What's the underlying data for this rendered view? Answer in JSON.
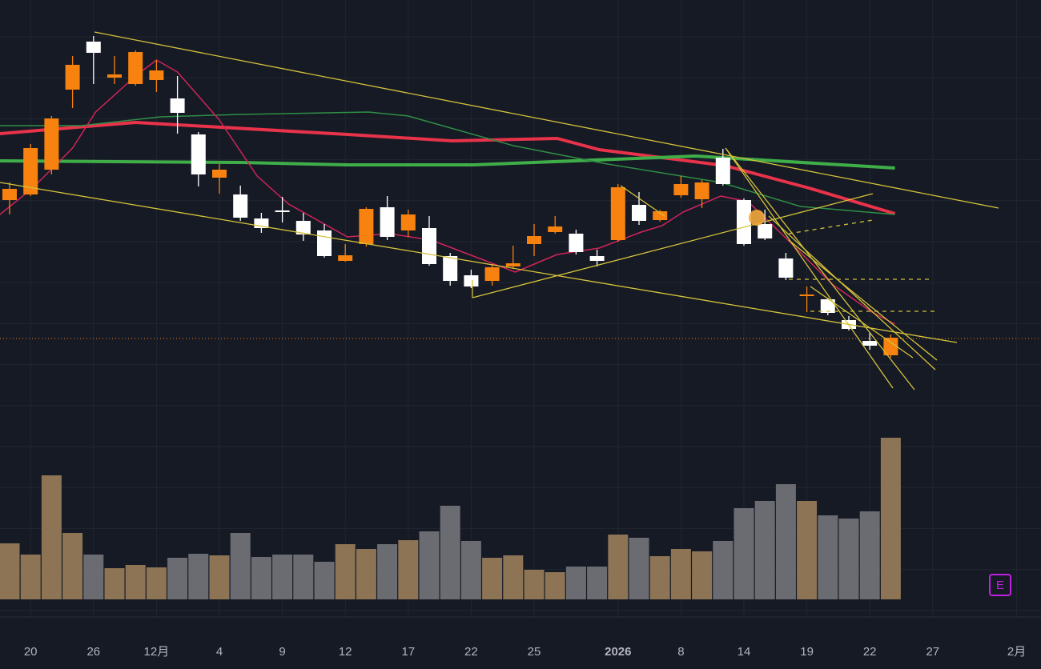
{
  "chart_data": {
    "type": "candlestick",
    "categories": [
      null,
      "20",
      null,
      null,
      "26",
      null,
      null,
      "12月",
      null,
      null,
      "4",
      null,
      null,
      "9",
      null,
      null,
      "12",
      null,
      null,
      "17",
      null,
      null,
      "22",
      null,
      null,
      "25",
      null,
      null,
      null,
      "2026",
      null,
      null,
      "8",
      null,
      null,
      "14",
      null,
      null,
      "19",
      null,
      null,
      "22",
      null,
      null,
      "27",
      null,
      null,
      null,
      "2月"
    ],
    "open": [
      250,
      257,
      288,
      388,
      448,
      403,
      395,
      400,
      377,
      332,
      278,
      257,
      227,
      237,
      224,
      212,
      174,
      195,
      241,
      212,
      215,
      180,
      156,
      149,
      167,
      195,
      210,
      208,
      180,
      200,
      244,
      225,
      256,
      251,
      303,
      250,
      220,
      177,
      130,
      126,
      100,
      74,
      56,
      null,
      null,
      null,
      null,
      null,
      null
    ],
    "high": [
      272,
      320,
      355,
      430,
      455,
      430,
      437,
      425,
      405,
      335,
      295,
      268,
      234,
      254,
      234,
      220,
      195,
      241,
      255,
      238,
      230,
      184,
      163,
      170,
      193,
      220,
      230,
      213,
      188,
      270,
      260,
      238,
      280,
      275,
      314,
      252,
      238,
      184,
      142,
      128,
      105,
      85,
      82,
      null,
      null,
      null,
      null,
      null,
      null
    ],
    "low": [
      232,
      255,
      282,
      365,
      395,
      395,
      393,
      385,
      333,
      267,
      258,
      224,
      209,
      222,
      199,
      178,
      173,
      192,
      200,
      204,
      168,
      143,
      140,
      143,
      164,
      180,
      208,
      182,
      167,
      198,
      219,
      223,
      253,
      240,
      268,
      193,
      200,
      150,
      110,
      106,
      87,
      63,
      53,
      null,
      null,
      null,
      null,
      null,
      null
    ],
    "close": [
      264,
      315,
      352,
      419,
      434,
      407,
      435,
      412,
      359,
      282,
      288,
      228,
      215,
      235,
      207,
      180,
      181,
      239,
      204,
      232,
      170,
      149,
      142,
      166,
      171,
      205,
      217,
      185,
      174,
      266,
      224,
      236,
      270,
      272,
      270,
      195,
      202,
      153,
      132,
      109,
      89,
      68,
      78,
      null,
      null,
      null,
      null,
      null,
      null
    ],
    "volume": [
      70,
      56,
      155,
      83,
      56,
      39,
      43,
      40,
      52,
      57,
      55,
      83,
      53,
      56,
      56,
      47,
      69,
      63,
      69,
      74,
      85,
      117,
      73,
      52,
      55,
      37,
      34,
      41,
      41,
      81,
      77,
      54,
      63,
      60,
      73,
      114,
      123,
      144,
      123,
      105,
      101,
      110,
      202,
      null,
      null,
      null,
      null,
      null,
      null
    ],
    "up_color": "#f7820f",
    "down_color": "#ffffff",
    "volume_up_color": "#8c7455",
    "volume_down_color": "#6b6c72",
    "ylim": [
      0,
      500
    ],
    "volume_lim": [
      0,
      220
    ],
    "price_line": 77,
    "price_line_color": "#f7820f",
    "lines": [
      {
        "color": "#e8334a",
        "width": 4,
        "x": [
          -0.46,
          6.0,
          16.1,
          21.1,
          26.1,
          28.1,
          34.1,
          38.1,
          42.2
        ],
        "values": [
          333,
          347,
          332,
          324,
          327,
          313,
          293,
          265,
          233
        ]
      },
      {
        "color": "#3fae49",
        "width": 4,
        "x": [
          -0.46,
          11.0,
          16.1,
          22.1,
          32.7,
          42.2
        ],
        "values": [
          299,
          297,
          294,
          294,
          305,
          290
        ]
      },
      {
        "color": "#2f8f45",
        "width": 1.5,
        "x": [
          -0.46,
          3.4,
          7.2,
          11.0,
          17.1,
          19.0,
          24.0,
          28.5,
          33.9,
          37.7,
          42.2
        ],
        "values": [
          343,
          343,
          354,
          357,
          360,
          355,
          318,
          295,
          272,
          242,
          232
        ]
      },
      {
        "color": "#d0245a",
        "width": 1.5,
        "x": [
          -0.46,
          1.1,
          3.0,
          4.1,
          6.0,
          7.0,
          8.0,
          10.0,
          11.8,
          13.3,
          16.1,
          18.1,
          20.1,
          22.1,
          24.1,
          26.1,
          28.1,
          30.1,
          31.1,
          32.1,
          33.9,
          35.2,
          37.1,
          39.2,
          41.1,
          42.2
        ],
        "values": [
          232,
          265,
          315,
          360,
          405,
          425,
          410,
          350,
          280,
          245,
          204,
          208,
          200,
          180,
          160,
          182,
          190,
          210,
          218,
          235,
          255,
          248,
          200,
          145,
          110,
          95
        ]
      }
    ],
    "badge": "E"
  }
}
